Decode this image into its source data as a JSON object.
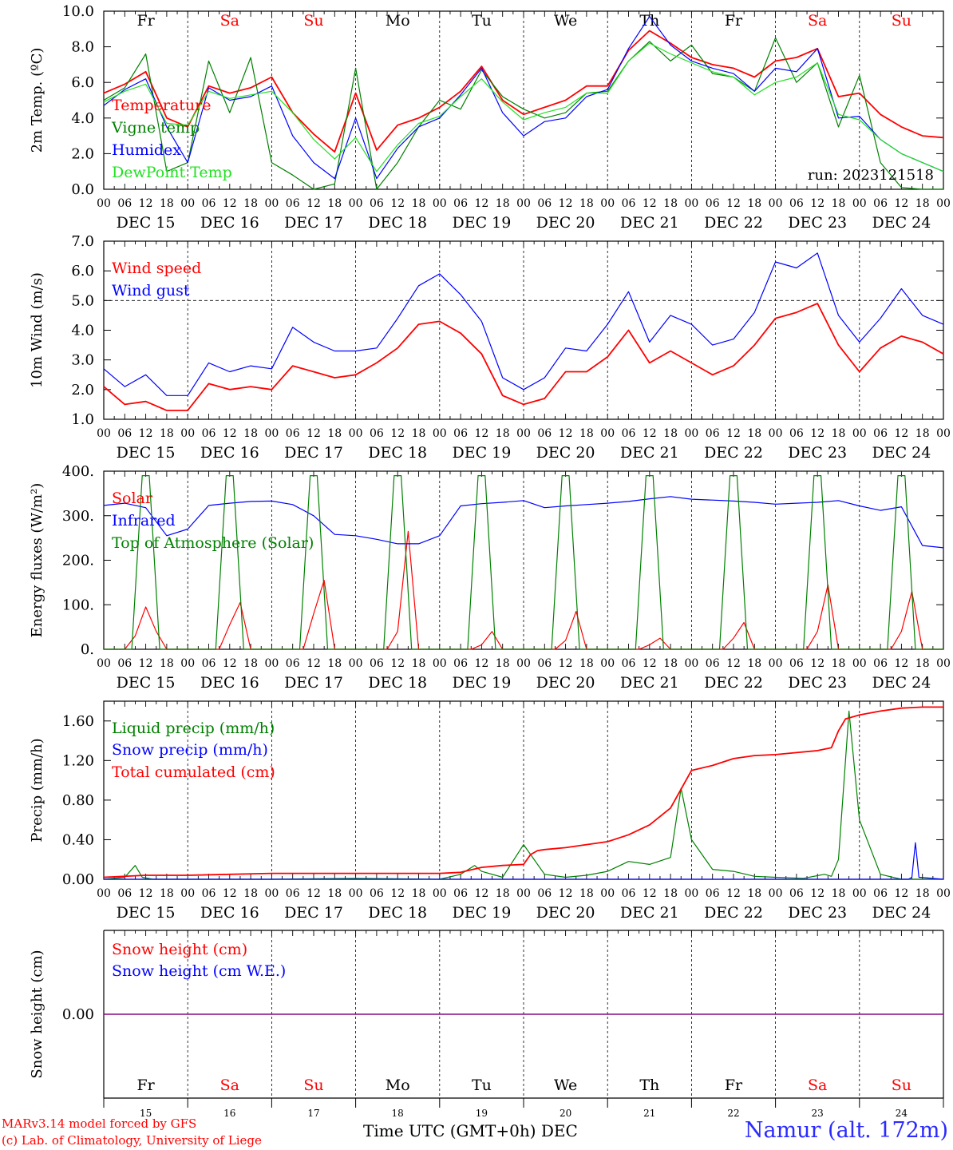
{
  "days": {
    "names": [
      "Fr",
      "Sa",
      "Su",
      "Mo",
      "Tu",
      "We",
      "Th",
      "Fr",
      "Sa",
      "Su"
    ],
    "weekend": [
      false,
      true,
      true,
      false,
      false,
      false,
      false,
      false,
      true,
      true
    ],
    "dates": [
      "DEC 15",
      "DEC 16",
      "DEC 17",
      "DEC 18",
      "DEC 19",
      "DEC 20",
      "DEC 21",
      "DEC 22",
      "DEC 23",
      "DEC 24"
    ],
    "day_numbers": [
      "15",
      "16",
      "17",
      "18",
      "19",
      "20",
      "21",
      "22",
      "23",
      "24"
    ],
    "hour_ticks": [
      "00",
      "06",
      "12",
      "18"
    ],
    "final_tick": "00"
  },
  "colors": {
    "red": "#ff0000",
    "green": "#008000",
    "blue": "#0000ff",
    "lightgreen": "#22e022",
    "purple": "#800080"
  },
  "chart_data": [
    {
      "type": "line",
      "ylabel": "2m Temp. (ºC)",
      "ylim": [
        0,
        10
      ],
      "yticks": [
        "0.0",
        "2.0",
        "4.0",
        "6.0",
        "8.0",
        "10.0"
      ],
      "annotation": "run: 2023121518",
      "x_unit": "hours from 2023-12-15 00 UTC",
      "series": [
        {
          "name": "Temperature",
          "color": "#ff0000",
          "x": [
            0,
            6,
            12,
            18,
            24,
            30,
            36,
            42,
            48,
            54,
            60,
            66,
            72,
            78,
            84,
            90,
            96,
            102,
            108,
            114,
            120,
            126,
            132,
            138,
            144,
            150,
            156,
            162,
            168,
            174,
            180,
            186,
            192,
            198,
            204,
            210,
            216,
            222,
            228,
            234,
            240
          ],
          "y": [
            5.4,
            5.9,
            6.6,
            4.0,
            3.5,
            5.8,
            5.4,
            5.7,
            6.3,
            4.3,
            3.1,
            2.1,
            5.4,
            2.2,
            3.6,
            4.0,
            4.6,
            5.5,
            6.9,
            5.0,
            4.2,
            4.6,
            5.0,
            5.8,
            5.8,
            7.8,
            8.9,
            8.2,
            7.4,
            7.0,
            6.8,
            6.3,
            7.2,
            7.4,
            7.9,
            5.2,
            5.4,
            4.2,
            3.5,
            3.0,
            2.9
          ]
        },
        {
          "name": "Vigne temp",
          "color": "#008000",
          "x": [
            0,
            6,
            12,
            18,
            24,
            30,
            36,
            42,
            48,
            54,
            60,
            66,
            72,
            78,
            84,
            90,
            96,
            102,
            108,
            114,
            120,
            126,
            132,
            138,
            144,
            150,
            156,
            162,
            168,
            174,
            180,
            186,
            192,
            198,
            204,
            210,
            216,
            222,
            228,
            234,
            240
          ],
          "y": [
            5.0,
            5.7,
            7.6,
            1.0,
            1.5,
            7.2,
            4.3,
            7.4,
            1.5,
            0.8,
            0.0,
            0.3,
            6.8,
            0.0,
            1.5,
            3.5,
            5.0,
            4.5,
            6.7,
            5.2,
            4.5,
            4.0,
            4.3,
            5.4,
            5.5,
            7.2,
            8.3,
            7.2,
            8.1,
            6.5,
            6.3,
            5.5,
            8.5,
            6.0,
            7.1,
            3.5,
            6.4,
            1.5,
            0.1,
            0.0,
            0.0
          ]
        },
        {
          "name": "Humidex",
          "color": "#0000ff",
          "x": [
            0,
            6,
            12,
            18,
            24,
            30,
            36,
            42,
            48,
            54,
            60,
            66,
            72,
            78,
            84,
            90,
            96,
            102,
            108,
            114,
            120,
            126,
            132,
            138,
            144,
            150,
            156,
            162,
            168,
            174,
            180,
            186,
            192,
            198,
            204,
            210,
            216,
            222,
            228,
            234,
            240
          ],
          "y": [
            4.7,
            5.6,
            6.2,
            3.5,
            1.5,
            5.7,
            5.0,
            5.2,
            5.8,
            3.0,
            1.5,
            0.6,
            4.0,
            0.6,
            2.3,
            3.5,
            4.0,
            5.3,
            6.8,
            4.3,
            3.0,
            3.8,
            4.0,
            5.2,
            5.6,
            7.9,
            9.7,
            8.1,
            7.2,
            6.8,
            6.5,
            5.5,
            6.8,
            6.6,
            7.9,
            4.0,
            4.1,
            2.8,
            2.0,
            1.5,
            1.0
          ]
        },
        {
          "name": "DewPoint Temp",
          "color": "#22e022",
          "x": [
            0,
            6,
            12,
            18,
            24,
            30,
            36,
            42,
            48,
            54,
            60,
            66,
            72,
            78,
            84,
            90,
            96,
            102,
            108,
            114,
            120,
            126,
            132,
            138,
            144,
            150,
            156,
            162,
            168,
            174,
            180,
            186,
            192,
            198,
            204,
            210,
            216,
            222,
            228,
            234,
            240
          ],
          "y": [
            4.9,
            5.5,
            5.9,
            3.7,
            3.6,
            5.5,
            5.1,
            5.3,
            5.5,
            4.3,
            2.8,
            1.7,
            2.9,
            1.0,
            2.5,
            3.7,
            4.1,
            5.2,
            6.2,
            4.9,
            3.9,
            4.3,
            4.6,
            5.4,
            5.4,
            7.2,
            8.2,
            7.6,
            7.1,
            6.6,
            6.3,
            5.3,
            6.0,
            6.3,
            7.1,
            4.2,
            3.9,
            2.8,
            2.0,
            1.5,
            1.0
          ]
        }
      ]
    },
    {
      "type": "line",
      "ylabel": "10m Wind (m/s)",
      "ylim": [
        1,
        7
      ],
      "yticks": [
        "1.0",
        "2.0",
        "3.0",
        "4.0",
        "5.0",
        "6.0",
        "7.0"
      ],
      "reference_line": 5.0,
      "series": [
        {
          "name": "Wind speed",
          "color": "#ff0000",
          "x": [
            0,
            6,
            12,
            18,
            24,
            30,
            36,
            42,
            48,
            54,
            60,
            66,
            72,
            78,
            84,
            90,
            96,
            102,
            108,
            114,
            120,
            126,
            132,
            138,
            144,
            150,
            156,
            162,
            168,
            174,
            180,
            186,
            192,
            198,
            204,
            210,
            216,
            222,
            228,
            234,
            240
          ],
          "y": [
            2.1,
            1.5,
            1.6,
            1.3,
            1.3,
            2.2,
            2.0,
            2.1,
            2.0,
            2.8,
            2.6,
            2.4,
            2.5,
            2.9,
            3.4,
            4.2,
            4.3,
            3.9,
            3.2,
            1.8,
            1.5,
            1.7,
            2.6,
            2.6,
            3.1,
            4.0,
            2.9,
            3.3,
            2.9,
            2.5,
            2.8,
            3.5,
            4.4,
            4.6,
            4.9,
            3.5,
            2.6,
            3.4,
            3.8,
            3.6,
            3.2
          ]
        },
        {
          "name": "Wind gust",
          "color": "#0000ff",
          "x": [
            0,
            6,
            12,
            18,
            24,
            30,
            36,
            42,
            48,
            54,
            60,
            66,
            72,
            78,
            84,
            90,
            96,
            102,
            108,
            114,
            120,
            126,
            132,
            138,
            144,
            150,
            156,
            162,
            168,
            174,
            180,
            186,
            192,
            198,
            204,
            210,
            216,
            222,
            228,
            234,
            240
          ],
          "y": [
            2.7,
            2.1,
            2.5,
            1.8,
            1.8,
            2.9,
            2.6,
            2.8,
            2.7,
            4.1,
            3.6,
            3.3,
            3.3,
            3.4,
            4.4,
            5.5,
            5.9,
            5.2,
            4.3,
            2.4,
            2.0,
            2.4,
            3.4,
            3.3,
            4.2,
            5.3,
            3.6,
            4.5,
            4.2,
            3.5,
            3.7,
            4.6,
            6.3,
            6.1,
            6.6,
            4.5,
            3.6,
            4.4,
            5.4,
            4.5,
            4.2
          ]
        }
      ]
    },
    {
      "type": "line",
      "ylabel": "Energy fluxes (W/m²)",
      "ylim": [
        0,
        400
      ],
      "yticks": [
        "0.",
        "100.",
        "200.",
        "300.",
        "400."
      ],
      "series": [
        {
          "name": "Solar",
          "color": "#ff0000",
          "x": [
            0,
            6,
            9,
            12,
            15,
            18,
            24,
            33,
            36,
            39,
            42,
            57,
            60,
            63,
            66,
            81,
            84,
            87,
            90,
            105,
            108,
            111,
            114,
            129,
            132,
            135,
            138,
            153,
            156,
            159,
            162,
            177,
            180,
            183,
            186,
            201,
            204,
            207,
            210,
            225,
            228,
            231,
            234,
            240
          ],
          "y": [
            0,
            0,
            30,
            95,
            40,
            0,
            0,
            0,
            55,
            105,
            0,
            0,
            80,
            155,
            0,
            0,
            40,
            265,
            0,
            0,
            10,
            40,
            0,
            0,
            20,
            85,
            0,
            0,
            10,
            25,
            0,
            0,
            25,
            60,
            0,
            0,
            40,
            145,
            0,
            0,
            40,
            130,
            0,
            0
          ]
        },
        {
          "name": "Infrared",
          "color": "#0000ff",
          "x": [
            0,
            6,
            12,
            18,
            24,
            30,
            36,
            42,
            48,
            54,
            60,
            66,
            72,
            78,
            84,
            90,
            96,
            102,
            108,
            114,
            120,
            126,
            132,
            138,
            144,
            150,
            156,
            162,
            168,
            174,
            180,
            186,
            192,
            198,
            204,
            210,
            216,
            222,
            228,
            234,
            240
          ],
          "y": [
            323,
            328,
            318,
            255,
            270,
            323,
            328,
            332,
            333,
            325,
            300,
            258,
            255,
            247,
            237,
            237,
            255,
            322,
            327,
            330,
            334,
            318,
            322,
            325,
            328,
            332,
            338,
            343,
            337,
            335,
            333,
            330,
            326,
            328,
            330,
            334,
            322,
            312,
            320,
            233,
            228
          ]
        },
        {
          "name": "Top of Atmosphere (Solar)",
          "color": "#008000",
          "x": [
            0,
            8,
            11,
            13,
            16,
            24,
            32,
            35,
            37,
            40,
            48,
            56,
            59,
            61,
            64,
            72,
            80,
            83,
            85,
            88,
            96,
            104,
            107,
            109,
            112,
            120,
            128,
            131,
            133,
            136,
            144,
            152,
            155,
            157,
            160,
            168,
            176,
            179,
            181,
            184,
            192,
            200,
            203,
            205,
            208,
            216,
            224,
            227,
            229,
            232,
            240
          ],
          "y": [
            0,
            0,
            390,
            390,
            0,
            0,
            0,
            390,
            390,
            0,
            0,
            0,
            390,
            390,
            0,
            0,
            0,
            390,
            390,
            0,
            0,
            0,
            390,
            390,
            0,
            0,
            0,
            390,
            390,
            0,
            0,
            0,
            390,
            390,
            0,
            0,
            0,
            390,
            390,
            0,
            0,
            0,
            390,
            390,
            0,
            0,
            0,
            390,
            390,
            0,
            0
          ]
        }
      ]
    },
    {
      "type": "line",
      "ylabel": "Precip (mm/h)",
      "ylim": [
        0,
        1.8
      ],
      "yticks": [
        "0.00",
        "0.40",
        "0.80",
        "1.20",
        "1.60"
      ],
      "series": [
        {
          "name": "Liquid precip (mm/h)",
          "color": "#008000",
          "x": [
            0,
            6,
            9,
            11,
            14,
            24,
            48,
            72,
            96,
            102,
            106,
            108,
            114,
            120,
            126,
            132,
            138,
            144,
            150,
            156,
            162,
            165,
            168,
            174,
            180,
            186,
            192,
            200,
            206,
            208,
            210,
            213,
            216,
            222,
            228,
            234,
            240
          ],
          "y": [
            0,
            0.02,
            0.14,
            0.02,
            0,
            0,
            0,
            0.01,
            0,
            0.05,
            0.14,
            0.08,
            0.02,
            0.35,
            0.05,
            0.02,
            0.04,
            0.08,
            0.18,
            0.15,
            0.22,
            0.92,
            0.4,
            0.1,
            0.08,
            0.03,
            0.02,
            0.01,
            0.05,
            0.03,
            0.2,
            1.7,
            0.6,
            0.05,
            0,
            0,
            0
          ]
        },
        {
          "name": "Snow precip (mm/h)",
          "color": "#0000ff",
          "x": [
            0,
            230,
            231,
            232,
            233,
            240
          ],
          "y": [
            0,
            0,
            0.02,
            0.37,
            0.02,
            0
          ]
        },
        {
          "name": "Total cumulated (cm)",
          "color": "#ff0000",
          "x": [
            0,
            12,
            24,
            48,
            72,
            96,
            102,
            108,
            114,
            120,
            122,
            124,
            126,
            132,
            138,
            144,
            150,
            156,
            162,
            168,
            174,
            180,
            186,
            192,
            198,
            204,
            208,
            210,
            212,
            216,
            222,
            228,
            234,
            240
          ],
          "y": [
            0.02,
            0.04,
            0.04,
            0.06,
            0.06,
            0.06,
            0.07,
            0.12,
            0.14,
            0.15,
            0.25,
            0.29,
            0.3,
            0.32,
            0.35,
            0.38,
            0.45,
            0.55,
            0.72,
            1.1,
            1.15,
            1.22,
            1.25,
            1.26,
            1.28,
            1.3,
            1.33,
            1.5,
            1.62,
            1.66,
            1.7,
            1.73,
            1.74,
            1.74
          ]
        }
      ]
    },
    {
      "type": "line",
      "ylabel": "Snow height (cm)",
      "ylim": [
        -1,
        1
      ],
      "yticks": [
        "0.00"
      ],
      "series": [
        {
          "name": "Snow height (cm)",
          "color": "#ff0000",
          "x": [
            0,
            240
          ],
          "y": [
            0,
            0
          ]
        },
        {
          "name": "Snow height (cm W.E.)",
          "color": "#0000ff",
          "x": [
            0,
            240
          ],
          "y": [
            0,
            0
          ]
        }
      ]
    }
  ],
  "footer": {
    "credit_1": "MARv3.14 model forced by GFS",
    "credit_2": "(c) Lab. of Climatology, University of Liege",
    "axis_title": "Time UTC (GMT+0h) DEC",
    "site": "Namur (alt. 172m)"
  }
}
